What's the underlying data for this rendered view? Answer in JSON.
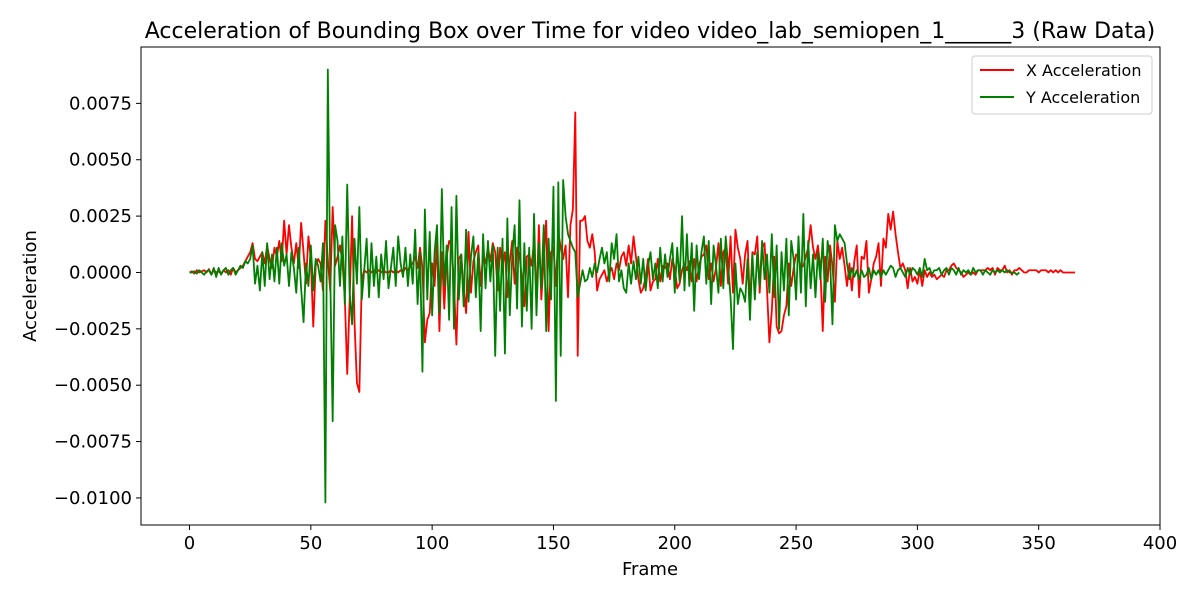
{
  "chart_data": {
    "type": "line",
    "title": "Acceleration of Bounding Box over Time for video video_lab_semiopen_1______3 (Raw Data)",
    "xlabel": "Frame",
    "ylabel": "Acceleration",
    "xlim": [
      -20,
      400
    ],
    "ylim": [
      -0.0112,
      0.01
    ],
    "xticks": [
      0,
      50,
      100,
      150,
      200,
      250,
      300,
      350,
      400
    ],
    "xtick_labels": [
      "0",
      "50",
      "100",
      "150",
      "200",
      "250",
      "300",
      "350",
      "400"
    ],
    "yticks": [
      0.0075,
      0.005,
      0.0025,
      0.0,
      -0.0025,
      -0.005,
      -0.0075,
      -0.01
    ],
    "ytick_labels": [
      "0.0075",
      "0.0050",
      "0.0025",
      "0.0000",
      "−0.0025",
      "−0.0050",
      "−0.0075",
      "−0.0100"
    ],
    "grid": false,
    "legend_position": "top-right",
    "series": [
      {
        "name": "X Acceleration",
        "color": "#ff0000",
        "x_start": 0,
        "x_step": 1,
        "values": [
          0,
          5e-05,
          -5e-05,
          0.0001,
          0,
          5e-05,
          0.0001,
          0,
          0.00015,
          -0.0001,
          0.0001,
          0,
          5e-05,
          -5e-05,
          0.0001,
          0,
          0.0001,
          -0.0001,
          0.0002,
          0,
          0.0001,
          0.0002,
          0.0003,
          0.0005,
          0.0007,
          0.0009,
          0.0013,
          0.0006,
          0.0005,
          0.0007,
          0.0009,
          0.0004,
          0.0012,
          0.0006,
          0.0002,
          0.0011,
          0.0007,
          0.0014,
          0.0005,
          0.0023,
          0.0008,
          0.0021,
          0.0011,
          0.0004,
          0.0013,
          0.0002,
          0.0022,
          0.0009,
          -0.0005,
          0.0016,
          0.0006,
          -0.0024,
          0.0003,
          0.0006,
          0.0004,
          -0.0008,
          0.0023,
          0.0006,
          -0.0008,
          0.0029,
          0.0003,
          0.0007,
          0.0012,
          0.0005,
          -0.0011,
          -0.0045,
          -0.0012,
          0.0025,
          -0.0022,
          -0.0049,
          -0.0053,
          -0.0003,
          0.0001,
          0,
          0.0001,
          0,
          0.0001,
          0,
          0.0001,
          0,
          0.0001,
          0,
          0,
          0.0001,
          0,
          0.0001,
          0,
          0.0001,
          0,
          0.0002,
          0.0001,
          0.0003,
          0.0004,
          0.0007,
          0.0002,
          0.0011,
          0.0002,
          -0.0031,
          -0.0021,
          -0.0018,
          0.0004,
          -0.0006,
          0.0014,
          -0.0026,
          0.0009,
          -0.0016,
          0.0007,
          0.0014,
          0.0012,
          -0.0005,
          -0.0032,
          0.0006,
          0.0008,
          -0.0007,
          -0.0018,
          0.0018,
          -0.0009,
          0.0005,
          0.0009,
          0.0012,
          -0.0006,
          0.0008,
          0.0004,
          0.0011,
          0.0005,
          0.0013,
          0.0009,
          -0.0008,
          0.0011,
          0.0003,
          0.0009,
          -0.0011,
          0.0005,
          0.0014,
          -0.0005,
          0.0011,
          0.0008,
          -0.0003,
          -0.0015,
          0.0007,
          0.0008,
          0.0003,
          0.0014,
          -0.0013,
          0.0021,
          -0.0012,
          0.0006,
          0.0023,
          -0.0026,
          0.0009,
          0.0011,
          -0.0006,
          0.0018,
          0.0011,
          0.0006,
          0.0012,
          -0.0011,
          0.0021,
          0.0028,
          0.0071,
          -0.0037,
          0.0023,
          0.0023,
          0.0025,
          0.0014,
          0.0011,
          0.0017,
          0.0009,
          -0.0008,
          -0.0003,
          -0.0001,
          0.0001,
          -0.0004,
          0,
          0.0002,
          -0.0003,
          0.0004,
          0.0001,
          0.0007,
          0.0009,
          0.0003,
          0.0012,
          0.0004,
          0.0016,
          0.0007,
          -0.0003,
          -0.0009,
          -0.0007,
          -0.0002,
          0.0006,
          -0.0008,
          -0.0004,
          -0.0003,
          0.0006,
          -0.0004,
          0.0003,
          0.0002,
          0.0004,
          -0.0003,
          0.0006,
          0.0002,
          -0.0007,
          -0.0005,
          0.0001,
          0.0004,
          0.0001,
          0.0005,
          -0.0004,
          0.0006,
          -0.0004,
          0.0003,
          0.0007,
          0.0008,
          0.0012,
          -0.0003,
          0.0004,
          -0.0004,
          0.0002,
          0.0013,
          -0.0006,
          0.0009,
          0.0011,
          -0.0005,
          0.0016,
          -0.0009,
          0.0019,
          0.0011,
          0.0006,
          -0.0005,
          0.0008,
          0.0014,
          -0.0014,
          0.0009,
          0.0008,
          0.0016,
          -0.0009,
          0.0011,
          0.0013,
          -0.0007,
          -0.0031,
          -0.0017,
          0.0007,
          -0.0024,
          -0.0027,
          -0.0026,
          -0.0019,
          -0.0015,
          0.0004,
          -0.0006,
          0.0002,
          0.0008,
          0.0007,
          0.0002,
          0.0003,
          0.0007,
          0.0011,
          0.0021,
          0.0011,
          0.0006,
          0.0012,
          0.0002,
          -0.0026,
          0.0007,
          -0.0004,
          0.0012,
          0.0003,
          -0.0013,
          0.0014,
          0.0006,
          0.0011,
          0.0003,
          -0.0006,
          0.0004,
          -0.0008,
          0.0005,
          0.0012,
          -0.0011,
          0.0007,
          0.0006,
          0.0014,
          -0.0009,
          -0.0003,
          0.0004,
          0.0007,
          0.0013,
          -0.0006,
          0.0015,
          0.0011,
          0.0026,
          0.0019,
          0.0027,
          0.0017,
          0.0009,
          0.0002,
          0.0004,
          0.0001,
          -0.0007,
          0.0002,
          -0.0004,
          -0.0002,
          -0.0005,
          0.0001,
          -0.0006,
          0.0001,
          -0.0002,
          0,
          -0.0002,
          -0.0001,
          -0.0003,
          -0.0002,
          -0.0001,
          -0.0002,
          0.0001,
          0.0001,
          0.0003,
          0.0004,
          0.0002,
          0.0001,
          0,
          -0.0002,
          -0.0001,
          0,
          -0.0001,
          0,
          -0.0001,
          0.0001,
          0.0001,
          0.0001,
          0.0001,
          0.0002,
          0.0001,
          0.0002,
          -0.0001,
          0.0002,
          0.0001,
          0.0001,
          0.0003,
          0,
          0.0001,
          -0.0001,
          0.0001,
          0.0001,
          0.0002,
          0.0001,
          0,
          0,
          0.0001,
          0.0001,
          0.0001,
          0.0001,
          0,
          0.0001,
          0.0001,
          0.0001,
          0,
          0.0001,
          0,
          0.0001,
          0,
          0.0001,
          0,
          0,
          0,
          0,
          0,
          0
        ]
      },
      {
        "name": "Y Acceleration",
        "color": "#008000",
        "x_start": 0,
        "x_step": 1,
        "values": [
          0,
          0,
          5e-05,
          -5e-05,
          0.0001,
          0,
          -0.0001,
          5e-05,
          0.0001,
          -0.0001,
          0.0002,
          -0.0002,
          0.0002,
          -0.0001,
          0.0001,
          0.0002,
          -0.0001,
          0.0001,
          0.0002,
          -0.0001,
          0.0001,
          0.0003,
          0.0002,
          0.0005,
          0.0004,
          0.0006,
          0.0012,
          -0.0005,
          0.0003,
          -0.0008,
          0.0009,
          -0.0006,
          0.0013,
          -0.0003,
          0.0008,
          -0.0004,
          0.0011,
          -0.0005,
          0.0013,
          0.0003,
          0.0008,
          -0.0006,
          0.0009,
          0.0002,
          -0.0009,
          0.0011,
          -0.0007,
          -0.0022,
          0.0004,
          -0.0006,
          0.0012,
          -0.0008,
          0.0006,
          0.0003,
          -0.0004,
          0.0013,
          -0.0102,
          0.009,
          -0.0001,
          -0.0066,
          0.0021,
          0.0014,
          -0.0006,
          0.0016,
          -0.0014,
          0.0039,
          -0.0009,
          -0.0023,
          0.0015,
          -0.0005,
          0.0029,
          -0.0012,
          0.0001,
          0.0015,
          -0.0011,
          0.0013,
          -0.0006,
          0.0007,
          -0.0011,
          0.0008,
          -0.0003,
          0.0014,
          -0.0007,
          0.0002,
          0.0011,
          -0.0006,
          0.0016,
          0.0004,
          -0.0002,
          0.0011,
          -0.0006,
          0.0008,
          -0.0005,
          0.0019,
          -0.0014,
          0.0009,
          -0.0044,
          0.0028,
          -0.0012,
          0.0018,
          -0.0019,
          0.0009,
          0.0021,
          -0.0018,
          0.0037,
          -0.0006,
          0.0012,
          -0.0021,
          0.0029,
          -0.0025,
          0.0034,
          -0.0012,
          0.0008,
          -0.0015,
          0.0019,
          -0.0013,
          0.0007,
          0.0016,
          -0.0011,
          0.0009,
          -0.0026,
          0.0017,
          -0.0007,
          0.0014,
          -0.0004,
          0.0012,
          -0.0037,
          0.0011,
          -0.0017,
          0.0015,
          -0.0036,
          0.0024,
          -0.0019,
          0.0007,
          0.0021,
          -0.0016,
          0.0032,
          -0.0024,
          0.0013,
          -0.0017,
          0.0011,
          -0.0025,
          0.0026,
          -0.0019,
          0.0013,
          -0.0007,
          0.0021,
          -0.0026,
          0.0015,
          -0.0012,
          0.0038,
          -0.0057,
          0.004,
          -0.0037,
          0.0041,
          0.0025,
          0.0017,
          0.0014,
          0.0011,
          0.0009,
          -0.0011,
          -0.0005,
          0.0001,
          -0.0004,
          -0.0003,
          0.0002,
          -0.0002,
          0.0004,
          0,
          0.0006,
          0.0011,
          0.0004,
          0.0009,
          -0.0004,
          0.0013,
          0.0006,
          0.0017,
          -0.0004,
          0.0001,
          -0.0007,
          -0.0009,
          0.0004,
          -0.0005,
          0.0005,
          -0.0003,
          0.0007,
          -0.0005,
          0.0006,
          -0.0008,
          0.0003,
          0.0009,
          -0.0003,
          0.0004,
          -0.0007,
          0.0011,
          -0.0004,
          0.0008,
          -0.0002,
          0.0006,
          0.0013,
          -0.0009,
          0.0011,
          -0.0004,
          0.0025,
          -0.0008,
          0.0017,
          -0.0006,
          0.0013,
          -0.0017,
          0.0012,
          -0.0003,
          0.0009,
          0.0016,
          -0.0005,
          0.0014,
          -0.0014,
          0.0012,
          0.0003,
          -0.0009,
          0.0015,
          -0.0007,
          0.0016,
          0.0003,
          -0.0011,
          -0.0034,
          0.0004,
          -0.0014,
          -0.0007,
          -0.0009,
          -0.0013,
          0.0006,
          -0.0021,
          0.0008,
          -0.0012,
          0.0009,
          -0.0006,
          0.0014,
          -0.0003,
          0.0008,
          -0.0009,
          0.0017,
          -0.0011,
          0.0012,
          -0.0025,
          0.0009,
          -0.0008,
          0.0015,
          -0.0019,
          0.0014,
          0.0006,
          -0.0012,
          0.0016,
          -0.0009,
          0.0026,
          -0.0015,
          0.0014,
          -0.0007,
          0.0008,
          -0.0011,
          0.0009,
          -0.0003,
          0.0015,
          -0.0013,
          0.0014,
          0.0006,
          -0.0023,
          0.0021,
          0.0014,
          0.0017,
          0.0015,
          0.0013,
          0.0004,
          -0.0003,
          0.0002,
          -0.0002,
          0.0001,
          -0.0003,
          0.0001,
          -0.0002,
          -0.0001,
          0.0002,
          -0.0003,
          0.0001,
          -0.0001,
          0.0001,
          -0.0002,
          0.0001,
          -0.0001,
          0.0001,
          0.0003,
          0.0002,
          -0.0002,
          0.0001,
          0.0002,
          0,
          -0.0002,
          0.0002,
          -0.0001,
          0.0002,
          0.0001,
          -0.0001,
          0.0002,
          -0.0002,
          0.0006,
          0.0001,
          0.0002,
          -0.0001,
          0.0001,
          0.0001,
          0.0002,
          -0.0001,
          0.0001,
          0.0002,
          -0.0001,
          0.0002,
          0.0001,
          -0.0001,
          0.0002,
          -0.0001,
          0.0001,
          0,
          0.0001,
          -0.0001,
          0.0002,
          0,
          0.0001,
          0.0001,
          -0.0001,
          0.0001,
          0,
          -0.0001,
          0.0001,
          0,
          0.0001,
          0,
          0.0001,
          0,
          0.0001,
          0,
          0,
          0,
          -0.0001,
          0
        ]
      }
    ]
  }
}
